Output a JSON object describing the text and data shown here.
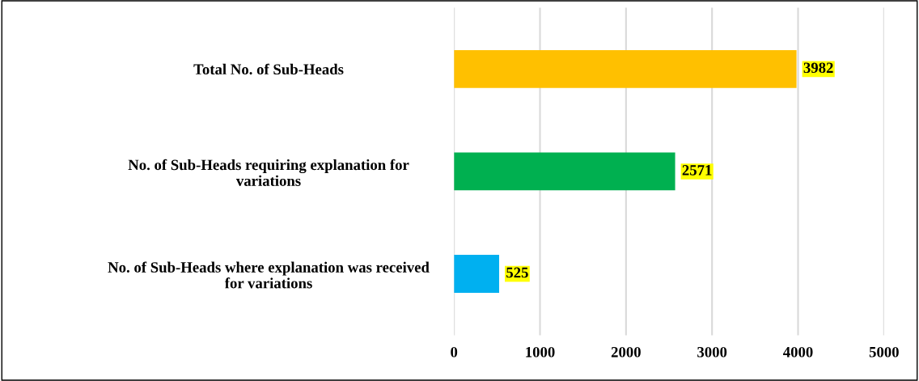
{
  "chart_data": {
    "type": "bar",
    "orientation": "horizontal",
    "categories": [
      "Total No. of Sub-Heads",
      "No. of Sub-Heads requiring explanation for\nvariations",
      "No. of Sub-Heads where explanation was received\nfor variations"
    ],
    "values": [
      3982,
      2571,
      525
    ],
    "colors": [
      "#ffc000",
      "#00b050",
      "#00b0f0"
    ],
    "xlim": [
      0,
      5000
    ],
    "xticks": [
      0,
      1000,
      2000,
      3000,
      4000,
      5000
    ],
    "grid": "x",
    "data_labels": true
  }
}
